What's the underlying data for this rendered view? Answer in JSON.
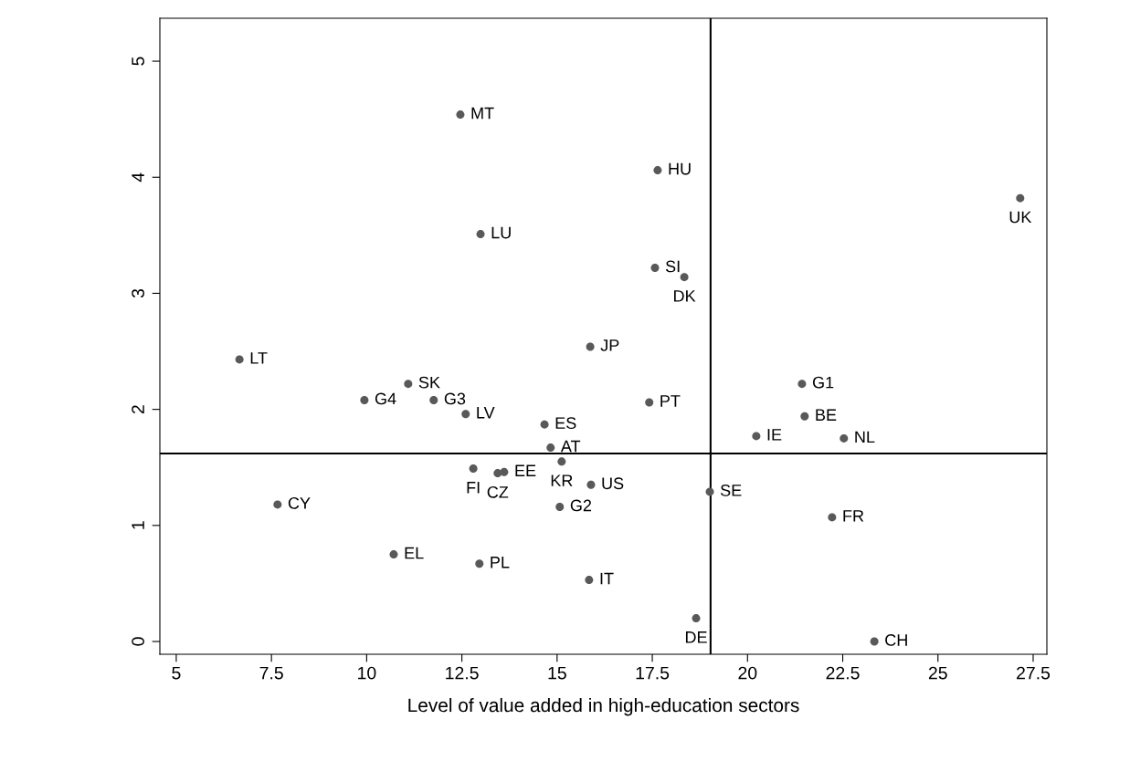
{
  "chart_data": {
    "type": "scatter",
    "xlabel": "Level of value added in high-education sectors",
    "x": [
      12.46,
      17.64,
      27.16,
      12.99,
      17.57,
      18.34,
      15.87,
      6.66,
      11.09,
      11.76,
      9.94,
      12.6,
      14.67,
      17.42,
      21.43,
      21.5,
      20.23,
      22.53,
      14.83,
      15.12,
      12.8,
      13.44,
      13.61,
      15.89,
      19.01,
      7.66,
      15.07,
      22.22,
      10.71,
      12.96,
      15.84,
      18.65,
      23.33
    ],
    "values": [
      4.54,
      4.06,
      3.82,
      3.51,
      3.22,
      3.14,
      2.54,
      2.43,
      2.22,
      2.08,
      2.08,
      1.96,
      1.87,
      2.06,
      2.22,
      1.94,
      1.77,
      1.75,
      1.67,
      1.55,
      1.49,
      1.45,
      1.46,
      1.35,
      1.29,
      1.18,
      1.16,
      1.07,
      0.75,
      0.67,
      0.53,
      0.2,
      0.0
    ],
    "color": "#595959",
    "marker": "circle",
    "annotations": [
      {
        "text": "MT",
        "x": 12.46,
        "y": 4.54
      },
      {
        "text": "HU",
        "x": 17.64,
        "y": 4.06
      },
      {
        "text": "UK",
        "x": 27.16,
        "y": 3.82
      },
      {
        "text": "LU",
        "x": 12.99,
        "y": 3.51
      },
      {
        "text": "SI",
        "x": 17.57,
        "y": 3.22
      },
      {
        "text": "DK",
        "x": 18.34,
        "y": 3.14
      },
      {
        "text": "JP",
        "x": 15.87,
        "y": 2.54
      },
      {
        "text": "LT",
        "x": 6.66,
        "y": 2.43
      },
      {
        "text": "SK",
        "x": 11.09,
        "y": 2.22
      },
      {
        "text": "G3",
        "x": 11.76,
        "y": 2.08
      },
      {
        "text": "G4",
        "x": 9.94,
        "y": 2.08
      },
      {
        "text": "LV",
        "x": 12.6,
        "y": 1.96
      },
      {
        "text": "ES",
        "x": 14.67,
        "y": 1.87
      },
      {
        "text": "PT",
        "x": 17.42,
        "y": 2.06
      },
      {
        "text": "G1",
        "x": 21.43,
        "y": 2.22
      },
      {
        "text": "BE",
        "x": 21.5,
        "y": 1.94
      },
      {
        "text": "IE",
        "x": 20.23,
        "y": 1.77
      },
      {
        "text": "NL",
        "x": 22.53,
        "y": 1.75
      },
      {
        "text": "AT",
        "x": 14.83,
        "y": 1.67
      },
      {
        "text": "KR",
        "x": 15.12,
        "y": 1.55
      },
      {
        "text": "FI",
        "x": 12.8,
        "y": 1.49
      },
      {
        "text": "CZ",
        "x": 13.44,
        "y": 1.45
      },
      {
        "text": "EE",
        "x": 13.61,
        "y": 1.46
      },
      {
        "text": "US",
        "x": 15.89,
        "y": 1.35
      },
      {
        "text": "SE",
        "x": 19.01,
        "y": 1.29
      },
      {
        "text": "CY",
        "x": 7.66,
        "y": 1.18
      },
      {
        "text": "G2",
        "x": 15.07,
        "y": 1.16
      },
      {
        "text": "FR",
        "x": 22.22,
        "y": 1.07
      },
      {
        "text": "EL",
        "x": 10.71,
        "y": 0.75
      },
      {
        "text": "PL",
        "x": 12.96,
        "y": 0.67
      },
      {
        "text": "IT",
        "x": 15.84,
        "y": 0.53
      },
      {
        "text": "DE",
        "x": 18.65,
        "y": 0.2
      },
      {
        "text": "CH",
        "x": 23.33,
        "y": 0.0
      }
    ],
    "xlim": [
      4.57,
      27.86
    ],
    "ylim": [
      -0.11,
      5.37
    ],
    "xticks": [
      5,
      {
        "value": 7.5,
        "label": "7.5"
      },
      10,
      {
        "value": 12.5,
        "label": "12.5"
      },
      15,
      {
        "value": 17.5,
        "label": "17.5"
      },
      20,
      {
        "value": 22.5,
        "label": "22.5"
      },
      25,
      {
        "value": 27.5,
        "label": "27.5"
      }
    ],
    "yticks": [
      0,
      1,
      2,
      3,
      4,
      5
    ],
    "ref_lines": [
      {
        "axis": "x",
        "value": 19.03,
        "color": "#000000"
      },
      {
        "axis": "y",
        "value": 1.62,
        "color": "#000000"
      }
    ],
    "grid": false,
    "legend": false
  }
}
